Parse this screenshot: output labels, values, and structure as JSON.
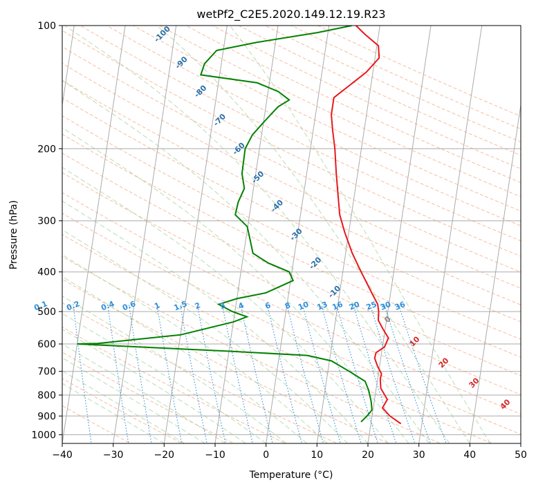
{
  "chart_data": {
    "type": "line",
    "title": "wetPf2_C2E5.2020.149.12.19.R23",
    "xlabel": "Temperature (°C)",
    "ylabel": "Pressure (hPa)",
    "xlim": [
      -40,
      50
    ],
    "ylim": [
      1050,
      100
    ],
    "y_scale": "log",
    "grid": true,
    "x_ticks": [
      "−40",
      "−30",
      "−20",
      "−10",
      "0",
      "10",
      "20",
      "30",
      "40",
      "50"
    ],
    "y_ticks": [
      "100",
      "200",
      "300",
      "400",
      "500",
      "600",
      "700",
      "800",
      "900",
      "1000"
    ],
    "series": [
      {
        "role": "temperature",
        "color": "#e8171b",
        "points": [
          [
            25.9,
            940
          ],
          [
            23.5,
            900
          ],
          [
            21.8,
            860
          ],
          [
            22.5,
            820
          ],
          [
            20.9,
            770
          ],
          [
            20.5,
            730
          ],
          [
            20.6,
            710
          ],
          [
            19.6,
            680
          ],
          [
            18.8,
            650
          ],
          [
            18.9,
            630
          ],
          [
            20.4,
            610
          ],
          [
            20.9,
            580
          ],
          [
            19.5,
            550
          ],
          [
            18.4,
            525
          ],
          [
            18.2,
            500
          ],
          [
            17.8,
            480
          ],
          [
            16.3,
            450
          ],
          [
            13.6,
            400
          ],
          [
            11.3,
            360
          ],
          [
            9.2,
            320
          ],
          [
            7.7,
            290
          ],
          [
            6.8,
            260
          ],
          [
            5.8,
            230
          ],
          [
            4.8,
            200
          ],
          [
            3.8,
            180
          ],
          [
            3.1,
            165
          ],
          [
            3.1,
            150
          ],
          [
            5.8,
            140
          ],
          [
            8.7,
            130
          ],
          [
            10.8,
            120
          ],
          [
            10.3,
            112
          ],
          [
            7.3,
            105
          ],
          [
            5.3,
            100
          ]
        ]
      },
      {
        "role": "dewpoint",
        "color": "#008000",
        "points": [
          [
            18.0,
            930
          ],
          [
            19.0,
            900
          ],
          [
            19.8,
            870
          ],
          [
            19.4,
            830
          ],
          [
            18.6,
            780
          ],
          [
            17.6,
            740
          ],
          [
            14.2,
            700
          ],
          [
            10.4,
            660
          ],
          [
            5.5,
            640
          ],
          [
            -10.0,
            625
          ],
          [
            -28.0,
            610
          ],
          [
            -40.0,
            600
          ],
          [
            -36.0,
            598
          ],
          [
            -20.0,
            570
          ],
          [
            -10.0,
            530
          ],
          [
            -7.5,
            515
          ],
          [
            -10.5,
            500
          ],
          [
            -13.4,
            480
          ],
          [
            -10.0,
            465
          ],
          [
            -4.5,
            450
          ],
          [
            0.5,
            420
          ],
          [
            -0.5,
            400
          ],
          [
            -5.0,
            380
          ],
          [
            -8.2,
            360
          ],
          [
            -9.3,
            330
          ],
          [
            -10.1,
            310
          ],
          [
            -12.8,
            290
          ],
          [
            -12.6,
            270
          ],
          [
            -11.8,
            250
          ],
          [
            -12.7,
            230
          ],
          [
            -12.8,
            200
          ],
          [
            -11.8,
            185
          ],
          [
            -9.6,
            170
          ],
          [
            -7.6,
            158
          ],
          [
            -5.6,
            152
          ],
          [
            -8.0,
            145
          ],
          [
            -12.4,
            138
          ],
          [
            -23.7,
            132
          ],
          [
            -23.3,
            124
          ],
          [
            -21.3,
            115
          ],
          [
            -13.8,
            110
          ],
          [
            -2.0,
            104
          ],
          [
            4.5,
            100
          ]
        ]
      }
    ],
    "isotherm_labels": [],
    "dry_adiabat_labels": [
      "-100",
      "-90",
      "-80",
      "-70",
      "-60",
      "-50",
      "-40",
      "-30",
      "-20",
      "-10"
    ],
    "mixing_ratio_labels": [
      "0.1",
      "0.2",
      "0.4",
      "0.6",
      "1",
      "1.5",
      "2",
      "3",
      "4",
      "6",
      "8",
      "10",
      "13",
      "16",
      "20",
      "25",
      "30",
      "36"
    ],
    "moist_adiabat_labels": [
      "0",
      "10",
      "20",
      "30",
      "40"
    ],
    "colors": {
      "temperature": "#e8171b",
      "dewpoint": "#008000",
      "dry_adiabat": "#f4a582",
      "moist_adiabat": "#a6d49c",
      "mixing_ratio": "#2e8fdb",
      "isotherm": "#aaaaaa",
      "dry_adiabat_label": "#2a6fa8",
      "moist_adiabat_label": "#d62728",
      "mixing_ratio_label": "#2e8fdb"
    }
  }
}
